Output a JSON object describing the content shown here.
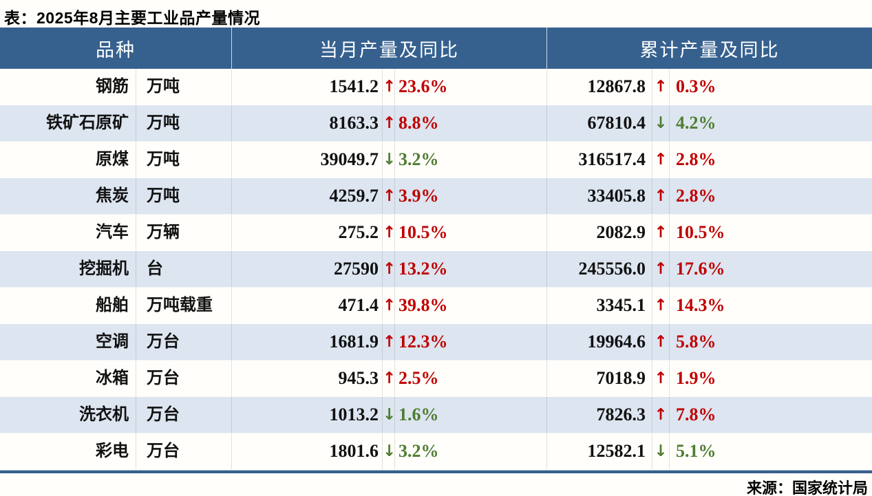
{
  "title": "表：2025年8月主要工业品产量情况",
  "source": "来源：国家统计局",
  "icons": {
    "up": "↑",
    "down": "↓"
  },
  "colors": {
    "header_bg": "#36618f",
    "stripe_bg": "#dce5f0",
    "up_red": "#c00000",
    "down_green": "#4f7d32",
    "bottom_bar": "#365f8c"
  },
  "chart_data": {
    "type": "table",
    "title": "2025年8月主要工业品产量情况",
    "headers": [
      "品种",
      "当月产量及同比",
      "累计产量及同比"
    ],
    "rows": [
      {
        "name": "钢筋",
        "unit": "万吨",
        "monthly": {
          "value": "1541.2",
          "dir": "up",
          "pct": "23.6%"
        },
        "cumulative": {
          "value": "12867.8",
          "dir": "up",
          "pct": "0.3%"
        }
      },
      {
        "name": "铁矿石原矿",
        "unit": "万吨",
        "monthly": {
          "value": "8163.3",
          "dir": "up",
          "pct": "8.8%"
        },
        "cumulative": {
          "value": "67810.4",
          "dir": "down",
          "pct": "4.2%"
        }
      },
      {
        "name": "原煤",
        "unit": "万吨",
        "monthly": {
          "value": "39049.7",
          "dir": "down",
          "pct": "3.2%"
        },
        "cumulative": {
          "value": "316517.4",
          "dir": "up",
          "pct": "2.8%"
        }
      },
      {
        "name": "焦炭",
        "unit": "万吨",
        "monthly": {
          "value": "4259.7",
          "dir": "up",
          "pct": "3.9%"
        },
        "cumulative": {
          "value": "33405.8",
          "dir": "up",
          "pct": "2.8%"
        }
      },
      {
        "name": "汽车",
        "unit": "万辆",
        "monthly": {
          "value": "275.2",
          "dir": "up",
          "pct": "10.5%"
        },
        "cumulative": {
          "value": "2082.9",
          "dir": "up",
          "pct": "10.5%"
        }
      },
      {
        "name": "挖掘机",
        "unit": "台",
        "monthly": {
          "value": "27590",
          "dir": "up",
          "pct": "13.2%"
        },
        "cumulative": {
          "value": "245556.0",
          "dir": "up",
          "pct": "17.6%"
        }
      },
      {
        "name": "船舶",
        "unit": "万吨载重",
        "monthly": {
          "value": "471.4",
          "dir": "up",
          "pct": "39.8%"
        },
        "cumulative": {
          "value": "3345.1",
          "dir": "up",
          "pct": "14.3%"
        }
      },
      {
        "name": "空调",
        "unit": "万台",
        "monthly": {
          "value": "1681.9",
          "dir": "up",
          "pct": "12.3%"
        },
        "cumulative": {
          "value": "19964.6",
          "dir": "up",
          "pct": "5.8%"
        }
      },
      {
        "name": "冰箱",
        "unit": "万台",
        "monthly": {
          "value": "945.3",
          "dir": "up",
          "pct": "2.5%"
        },
        "cumulative": {
          "value": "7018.9",
          "dir": "up",
          "pct": "1.9%"
        }
      },
      {
        "name": "洗衣机",
        "unit": "万台",
        "monthly": {
          "value": "1013.2",
          "dir": "down",
          "pct": "1.6%"
        },
        "cumulative": {
          "value": "7826.3",
          "dir": "up",
          "pct": "7.8%"
        }
      },
      {
        "name": "彩电",
        "unit": "万台",
        "monthly": {
          "value": "1801.6",
          "dir": "down",
          "pct": "3.2%"
        },
        "cumulative": {
          "value": "12582.1",
          "dir": "down",
          "pct": "5.1%"
        }
      }
    ]
  }
}
